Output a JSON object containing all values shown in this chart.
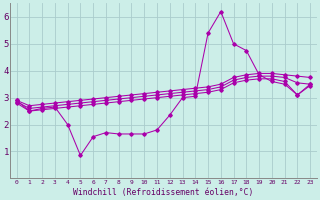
{
  "bg_color": "#cceee8",
  "grid_color": "#aacccc",
  "line_color": "#aa00aa",
  "xlabel": "Windchill (Refroidissement éolien,°C)",
  "xlim": [
    -0.5,
    23.5
  ],
  "ylim": [
    0,
    6.5
  ],
  "yticks": [
    1,
    2,
    3,
    4,
    5,
    6
  ],
  "xticks": [
    0,
    1,
    2,
    3,
    4,
    5,
    6,
    7,
    8,
    9,
    10,
    11,
    12,
    13,
    14,
    15,
    16,
    17,
    18,
    19,
    20,
    21,
    22,
    23
  ],
  "line1_x": [
    0,
    1,
    2,
    3,
    4,
    5,
    6,
    7,
    8,
    9,
    10,
    11,
    12,
    13,
    14,
    15,
    16,
    17,
    18,
    19,
    20,
    21,
    22,
    23
  ],
  "line1_y": [
    2.9,
    2.5,
    2.6,
    2.65,
    2.0,
    0.85,
    1.55,
    1.7,
    1.65,
    1.65,
    1.65,
    1.8,
    2.35,
    3.0,
    3.05,
    5.4,
    6.2,
    5.0,
    4.75,
    3.85,
    3.6,
    3.5,
    3.1,
    3.5
  ],
  "line2_x": [
    0,
    1,
    2,
    3,
    4,
    5,
    6,
    7,
    8,
    9,
    10,
    11,
    12,
    13,
    14,
    15,
    16,
    17,
    18,
    19,
    20,
    21,
    22,
    23
  ],
  "line2_y": [
    2.9,
    2.7,
    2.75,
    2.8,
    2.85,
    2.9,
    2.95,
    3.0,
    3.05,
    3.1,
    3.15,
    3.2,
    3.25,
    3.3,
    3.35,
    3.4,
    3.5,
    3.75,
    3.85,
    3.9,
    3.9,
    3.85,
    3.8,
    3.75
  ],
  "line3_x": [
    0,
    1,
    2,
    3,
    4,
    5,
    6,
    7,
    8,
    9,
    10,
    11,
    12,
    13,
    14,
    15,
    16,
    17,
    18,
    19,
    20,
    21,
    22,
    23
  ],
  "line3_y": [
    2.85,
    2.6,
    2.65,
    2.7,
    2.75,
    2.8,
    2.85,
    2.9,
    2.95,
    3.0,
    3.05,
    3.1,
    3.15,
    3.2,
    3.25,
    3.3,
    3.4,
    3.65,
    3.75,
    3.8,
    3.8,
    3.75,
    3.55,
    3.5
  ],
  "line4_x": [
    0,
    1,
    2,
    3,
    4,
    5,
    6,
    7,
    8,
    9,
    10,
    11,
    12,
    13,
    14,
    15,
    16,
    17,
    18,
    19,
    20,
    21,
    22,
    23
  ],
  "line4_y": [
    2.8,
    2.5,
    2.55,
    2.6,
    2.65,
    2.7,
    2.75,
    2.8,
    2.85,
    2.9,
    2.95,
    3.0,
    3.05,
    3.1,
    3.15,
    3.2,
    3.3,
    3.55,
    3.65,
    3.7,
    3.7,
    3.6,
    3.1,
    3.45
  ],
  "title_color": "#660066",
  "xlabel_color": "#660066",
  "tick_color": "#660066",
  "spine_color": "#888888"
}
